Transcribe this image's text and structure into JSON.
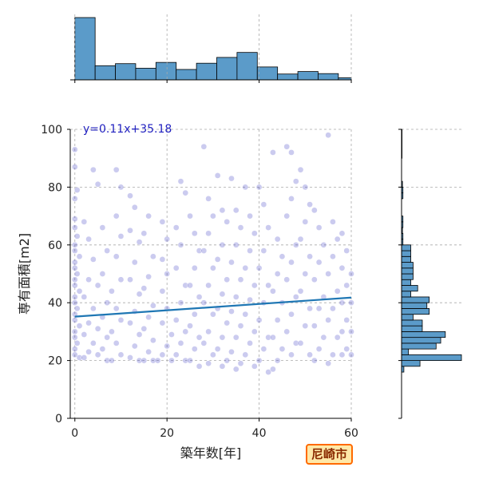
{
  "badge": {
    "label": "尼崎市",
    "colors": {
      "border": "#ff6a00",
      "fill": "#ffe8a8",
      "text": "#8a2a00"
    }
  },
  "chart_data": {
    "type": "scatter",
    "xlabel": "築年数[年]",
    "ylabel": "専有面積[m2]",
    "xlim": [
      -1,
      60
    ],
    "ylim": [
      0,
      100
    ],
    "xticks": [
      0,
      20,
      40,
      60
    ],
    "yticks": [
      0,
      20,
      40,
      60,
      80,
      100
    ],
    "grid": true,
    "regression": {
      "label": "y=0.11x+35.18",
      "slope": 0.11,
      "intercept": 35.18
    },
    "colors": {
      "points": "#3030c0",
      "line": "#1f77b4",
      "bars": "#5b9bc9",
      "equation": "#1f1fbf"
    },
    "top_histogram": {
      "bin_edges": [
        0,
        4.4,
        8.8,
        13.2,
        17.6,
        22,
        26.4,
        30.8,
        35.2,
        39.6,
        44,
        48.4,
        52.8,
        57.2,
        60
      ],
      "counts": [
        300,
        68,
        78,
        56,
        84,
        50,
        80,
        108,
        132,
        62,
        28,
        40,
        30,
        10
      ]
    },
    "right_histogram": {
      "bins": [
        {
          "range": [
            16,
            18
          ],
          "count": 5
        },
        {
          "range": [
            18,
            20
          ],
          "count": 40
        },
        {
          "range": [
            20,
            22
          ],
          "count": 130
        },
        {
          "range": [
            22,
            24
          ],
          "count": 15
        },
        {
          "range": [
            24,
            26
          ],
          "count": 75
        },
        {
          "range": [
            26,
            28
          ],
          "count": 85
        },
        {
          "range": [
            28,
            30
          ],
          "count": 95
        },
        {
          "range": [
            30,
            32
          ],
          "count": 45
        },
        {
          "range": [
            32,
            34
          ],
          "count": 45
        },
        {
          "range": [
            34,
            36
          ],
          "count": 25
        },
        {
          "range": [
            36,
            38
          ],
          "count": 60
        },
        {
          "range": [
            38,
            40
          ],
          "count": 55
        },
        {
          "range": [
            40,
            42
          ],
          "count": 60
        },
        {
          "range": [
            42,
            44
          ],
          "count": 20
        },
        {
          "range": [
            44,
            46
          ],
          "count": 35
        },
        {
          "range": [
            46,
            48
          ],
          "count": 20
        },
        {
          "range": [
            48,
            50
          ],
          "count": 25
        },
        {
          "range": [
            50,
            52
          ],
          "count": 25
        },
        {
          "range": [
            52,
            54
          ],
          "count": 25
        },
        {
          "range": [
            54,
            56
          ],
          "count": 20
        },
        {
          "range": [
            56,
            58
          ],
          "count": 20
        },
        {
          "range": [
            58,
            60
          ],
          "count": 20
        },
        {
          "range": [
            60,
            62
          ],
          "count": 3
        },
        {
          "range": [
            62,
            64
          ],
          "count": 3
        },
        {
          "range": [
            64,
            66
          ],
          "count": 2
        },
        {
          "range": [
            66,
            68
          ],
          "count": 3
        },
        {
          "range": [
            68,
            70
          ],
          "count": 3
        },
        {
          "range": [
            76,
            78
          ],
          "count": 3
        },
        {
          "range": [
            78,
            80
          ],
          "count": 3
        },
        {
          "range": [
            80,
            82
          ],
          "count": 2
        },
        {
          "range": [
            90,
            100
          ],
          "count": 1
        }
      ]
    },
    "series": [
      {
        "points": [
          [
            0,
            93
          ],
          [
            0,
            87
          ],
          [
            0.5,
            79
          ],
          [
            0,
            76
          ],
          [
            0,
            69
          ],
          [
            0,
            66
          ],
          [
            0.5,
            63
          ],
          [
            0,
            60
          ],
          [
            0,
            58
          ],
          [
            1,
            56
          ],
          [
            0,
            54
          ],
          [
            0,
            52
          ],
          [
            0.5,
            50
          ],
          [
            0,
            48
          ],
          [
            0,
            46
          ],
          [
            1,
            44
          ],
          [
            0,
            42
          ],
          [
            0,
            40
          ],
          [
            0.5,
            38
          ],
          [
            0,
            36
          ],
          [
            0,
            34
          ],
          [
            1,
            32
          ],
          [
            0,
            30
          ],
          [
            0,
            28
          ],
          [
            0.5,
            26
          ],
          [
            0,
            24
          ],
          [
            0,
            22
          ],
          [
            1,
            21
          ],
          [
            2,
            68
          ],
          [
            3,
            62
          ],
          [
            4,
            86
          ],
          [
            4,
            55
          ],
          [
            3,
            48
          ],
          [
            2,
            42
          ],
          [
            4,
            38
          ],
          [
            3,
            33
          ],
          [
            2,
            29
          ],
          [
            4,
            26
          ],
          [
            3,
            23
          ],
          [
            2,
            21
          ],
          [
            5,
            81
          ],
          [
            6,
            66
          ],
          [
            7,
            58
          ],
          [
            6,
            50
          ],
          [
            5,
            46
          ],
          [
            7,
            40
          ],
          [
            6,
            35
          ],
          [
            5,
            31
          ],
          [
            7,
            28
          ],
          [
            6,
            24
          ],
          [
            5,
            22
          ],
          [
            7,
            20
          ],
          [
            9,
            86
          ],
          [
            10,
            80
          ],
          [
            9,
            70
          ],
          [
            10,
            63
          ],
          [
            9,
            56
          ],
          [
            10,
            48
          ],
          [
            8,
            44
          ],
          [
            9,
            38
          ],
          [
            10,
            34
          ],
          [
            8,
            30
          ],
          [
            9,
            26
          ],
          [
            10,
            22
          ],
          [
            8,
            20
          ],
          [
            12,
            77
          ],
          [
            13,
            73
          ],
          [
            12,
            65
          ],
          [
            14,
            61
          ],
          [
            13,
            54
          ],
          [
            12,
            48
          ],
          [
            14,
            43
          ],
          [
            13,
            37
          ],
          [
            12,
            33
          ],
          [
            14,
            29
          ],
          [
            13,
            25
          ],
          [
            12,
            21
          ],
          [
            14,
            20
          ],
          [
            16,
            70
          ],
          [
            15,
            64
          ],
          [
            17,
            56
          ],
          [
            16,
            49
          ],
          [
            15,
            45
          ],
          [
            17,
            39
          ],
          [
            16,
            35
          ],
          [
            15,
            31
          ],
          [
            17,
            27
          ],
          [
            16,
            23
          ],
          [
            15,
            20
          ],
          [
            17,
            20
          ],
          [
            19,
            68
          ],
          [
            20,
            62
          ],
          [
            19,
            55
          ],
          [
            20,
            50
          ],
          [
            19,
            44
          ],
          [
            20,
            38
          ],
          [
            19,
            33
          ],
          [
            21,
            29
          ],
          [
            20,
            25
          ],
          [
            19,
            22
          ],
          [
            21,
            20
          ],
          [
            18,
            20
          ],
          [
            22,
            66
          ],
          [
            23,
            82
          ],
          [
            24,
            78
          ],
          [
            23,
            60
          ],
          [
            22,
            52
          ],
          [
            24,
            46
          ],
          [
            23,
            40
          ],
          [
            22,
            34
          ],
          [
            24,
            30
          ],
          [
            23,
            26
          ],
          [
            22,
            22
          ],
          [
            24,
            20
          ],
          [
            25,
            70
          ],
          [
            26,
            64
          ],
          [
            27,
            58
          ],
          [
            26,
            52
          ],
          [
            25,
            46
          ],
          [
            27,
            42
          ],
          [
            26,
            36
          ],
          [
            25,
            32
          ],
          [
            27,
            28
          ],
          [
            26,
            24
          ],
          [
            25,
            20
          ],
          [
            27,
            18
          ],
          [
            28,
            94
          ],
          [
            29,
            76
          ],
          [
            30,
            70
          ],
          [
            29,
            64
          ],
          [
            28,
            58
          ],
          [
            30,
            52
          ],
          [
            29,
            46
          ],
          [
            28,
            40
          ],
          [
            30,
            36
          ],
          [
            29,
            30
          ],
          [
            28,
            26
          ],
          [
            30,
            22
          ],
          [
            29,
            19
          ],
          [
            31,
            84
          ],
          [
            32,
            72
          ],
          [
            33,
            68
          ],
          [
            32,
            60
          ],
          [
            31,
            55
          ],
          [
            33,
            48
          ],
          [
            32,
            43
          ],
          [
            31,
            38
          ],
          [
            33,
            33
          ],
          [
            32,
            28
          ],
          [
            31,
            24
          ],
          [
            33,
            20
          ],
          [
            32,
            18
          ],
          [
            34,
            83
          ],
          [
            35,
            72
          ],
          [
            36,
            66
          ],
          [
            35,
            60
          ],
          [
            34,
            54
          ],
          [
            36,
            48
          ],
          [
            35,
            42
          ],
          [
            34,
            37
          ],
          [
            36,
            32
          ],
          [
            35,
            28
          ],
          [
            34,
            23
          ],
          [
            36,
            19
          ],
          [
            35,
            17
          ],
          [
            37,
            80
          ],
          [
            38,
            70
          ],
          [
            39,
            64
          ],
          [
            38,
            58
          ],
          [
            37,
            52
          ],
          [
            39,
            46
          ],
          [
            38,
            41
          ],
          [
            37,
            36
          ],
          [
            39,
            30
          ],
          [
            38,
            26
          ],
          [
            37,
            22
          ],
          [
            39,
            18
          ],
          [
            40,
            80
          ],
          [
            41,
            74
          ],
          [
            42,
            66
          ],
          [
            41,
            58
          ],
          [
            40,
            52
          ],
          [
            42,
            46
          ],
          [
            41,
            40
          ],
          [
            40,
            34
          ],
          [
            42,
            28
          ],
          [
            41,
            24
          ],
          [
            40,
            20
          ],
          [
            42,
            16
          ],
          [
            43,
            92
          ],
          [
            44,
            62
          ],
          [
            45,
            56
          ],
          [
            44,
            50
          ],
          [
            43,
            44
          ],
          [
            45,
            40
          ],
          [
            44,
            34
          ],
          [
            43,
            28
          ],
          [
            45,
            24
          ],
          [
            44,
            20
          ],
          [
            43,
            17
          ],
          [
            46,
            94
          ],
          [
            47,
            92
          ],
          [
            48,
            82
          ],
          [
            47,
            76
          ],
          [
            46,
            70
          ],
          [
            48,
            60
          ],
          [
            47,
            54
          ],
          [
            46,
            48
          ],
          [
            48,
            42
          ],
          [
            47,
            36
          ],
          [
            46,
            30
          ],
          [
            48,
            26
          ],
          [
            47,
            22
          ],
          [
            49,
            86
          ],
          [
            50,
            80
          ],
          [
            51,
            74
          ],
          [
            50,
            68
          ],
          [
            49,
            62
          ],
          [
            51,
            56
          ],
          [
            50,
            50
          ],
          [
            49,
            44
          ],
          [
            51,
            38
          ],
          [
            50,
            32
          ],
          [
            49,
            26
          ],
          [
            51,
            22
          ],
          [
            52,
            72
          ],
          [
            53,
            66
          ],
          [
            54,
            60
          ],
          [
            53,
            54
          ],
          [
            52,
            48
          ],
          [
            54,
            42
          ],
          [
            53,
            38
          ],
          [
            52,
            32
          ],
          [
            54,
            28
          ],
          [
            53,
            24
          ],
          [
            52,
            20
          ],
          [
            55,
            98
          ],
          [
            56,
            68
          ],
          [
            57,
            62
          ],
          [
            56,
            56
          ],
          [
            55,
            50
          ],
          [
            57,
            44
          ],
          [
            56,
            38
          ],
          [
            55,
            34
          ],
          [
            57,
            28
          ],
          [
            56,
            22
          ],
          [
            55,
            19
          ],
          [
            58,
            64
          ],
          [
            59,
            58
          ],
          [
            58,
            52
          ],
          [
            59,
            46
          ],
          [
            58,
            40
          ],
          [
            59,
            34
          ],
          [
            58,
            30
          ],
          [
            59,
            24
          ],
          [
            58,
            22
          ],
          [
            60,
            50
          ],
          [
            60,
            40
          ],
          [
            60,
            30
          ],
          [
            60,
            22
          ]
        ]
      }
    ]
  }
}
